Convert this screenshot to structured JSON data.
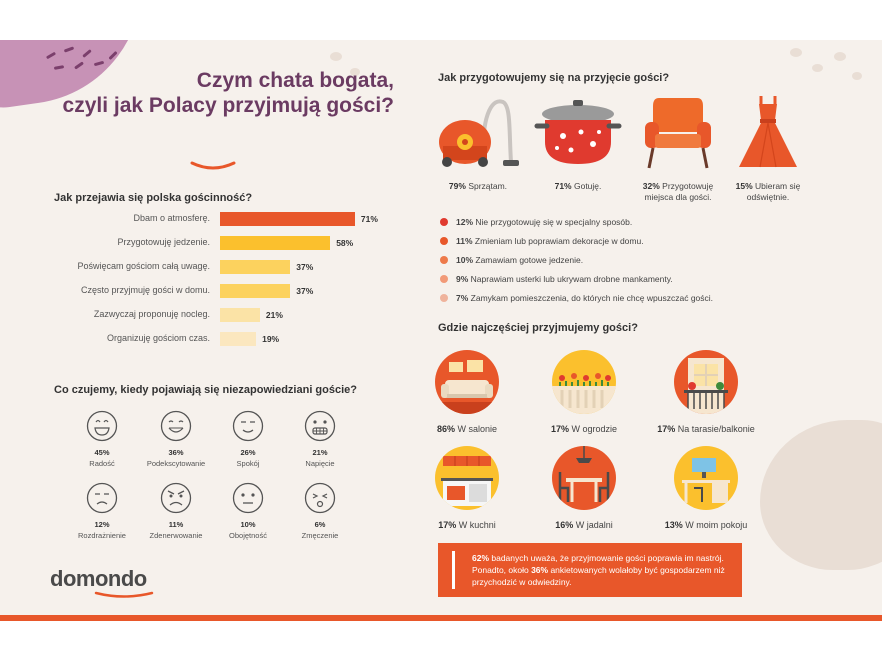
{
  "brand": {
    "logo": "domondo",
    "accent": "#e8572a",
    "title_color": "#6b3b62"
  },
  "title": {
    "line1": "Czym chata bogata,",
    "line2": "czyli jak Polacy przyjmują gości?"
  },
  "hospitality": {
    "heading": "Jak przejawia się polska gościnność?",
    "chart_data": {
      "type": "bar",
      "title": "Jak przejawia się polska gościnność?",
      "categories": [
        "Dbam o atmosferę.",
        "Przygotowuję jedzenie.",
        "Poświęcam gościom całą uwagę.",
        "Często przyjmuję gości w domu.",
        "Zazwyczaj proponuję nocleg.",
        "Organizuję gościom czas."
      ],
      "values": [
        71,
        58,
        37,
        37,
        21,
        19
      ],
      "value_labels": [
        "71%",
        "58%",
        "37%",
        "37%",
        "21%",
        "19%"
      ],
      "colors": [
        "#e8572a",
        "#fbc02d",
        "#fcd25e",
        "#fcd25e",
        "#fbe3a6",
        "#fbe7bf"
      ],
      "xlabel": "",
      "ylabel": "",
      "ylim": [
        0,
        100
      ]
    }
  },
  "feelings": {
    "heading": "Co czujemy, kiedy pojawiają się niezapowiedziani goście?",
    "items": [
      {
        "pct": "45%",
        "label": "Radość"
      },
      {
        "pct": "36%",
        "label": "Podekscytowanie"
      },
      {
        "pct": "26%",
        "label": "Spokój"
      },
      {
        "pct": "21%",
        "label": "Napięcie"
      },
      {
        "pct": "12%",
        "label": "Rozdrażnienie"
      },
      {
        "pct": "11%",
        "label": "Zdenerwowanie"
      },
      {
        "pct": "10%",
        "label": "Obojętność"
      },
      {
        "pct": "6%",
        "label": "Zmęczenie"
      }
    ]
  },
  "prepare": {
    "heading": "Jak przygotowujemy się na przyjęcie gości?",
    "items": [
      {
        "pct": "79%",
        "text": "Sprzątam.",
        "icon": "vacuum-cleaner-icon"
      },
      {
        "pct": "71%",
        "text": "Gotuję.",
        "icon": "pot-icon"
      },
      {
        "pct": "32%",
        "text": "Przygotowuję miejsca dla gości.",
        "icon": "armchair-icon"
      },
      {
        "pct": "15%",
        "text": "Ubieram się odświętnie.",
        "icon": "dress-icon"
      }
    ],
    "list": [
      {
        "pct": "12%",
        "text": "Nie przygotowuję się w specjalny sposób.",
        "color": "#e03a2f"
      },
      {
        "pct": "11%",
        "text": "Zmieniam lub poprawiam dekoracje w domu.",
        "color": "#e8572a"
      },
      {
        "pct": "10%",
        "text": "Zamawiam gotowe jedzenie.",
        "color": "#ee7a4a"
      },
      {
        "pct": "9%",
        "text": "Naprawiam usterki lub ukrywam drobne mankamenty.",
        "color": "#f29a78"
      },
      {
        "pct": "7%",
        "text": "Zamykam pomieszczenia, do których nie chcę wpuszczać gości.",
        "color": "#efb39c"
      }
    ]
  },
  "rooms": {
    "heading": "Gdzie najczęściej przyjmujemy gości?",
    "items": [
      {
        "pct": "86%",
        "text": "W salonie",
        "icon": "living-room-icon"
      },
      {
        "pct": "17%",
        "text": "W ogrodzie",
        "icon": "garden-icon"
      },
      {
        "pct": "17%",
        "text": "Na tarasie/balkonie",
        "icon": "balcony-icon"
      },
      {
        "pct": "17%",
        "text": "W kuchni",
        "icon": "kitchen-icon"
      },
      {
        "pct": "16%",
        "text": "W jadalni",
        "icon": "dining-room-icon"
      },
      {
        "pct": "13%",
        "text": "W moim pokoju",
        "icon": "bedroom-desk-icon"
      }
    ]
  },
  "callout": {
    "p1": "62%",
    "t1": " badanych uważa, że przyjmowanie gości poprawia im nastrój. Ponadto, około ",
    "p2": "36%",
    "t2": " ankietowanych wolałoby być gospodarzem niż przychodzić w odwiedziny."
  }
}
